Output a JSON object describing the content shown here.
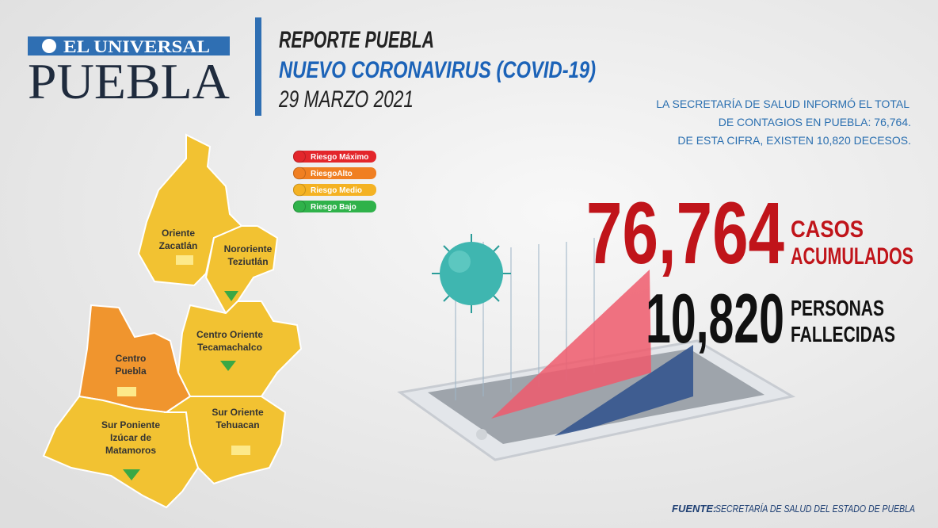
{
  "logo": {
    "top": "EL UNIVERSAL",
    "bottom": "PUEBLA"
  },
  "header": {
    "line1": "REPORTE PUEBLA",
    "line2": "NUEVO CORONAVIRUS (COVID-19)",
    "date": "29 MARZO 2021"
  },
  "summary": {
    "line1": "LA SECRETARÍA DE SALUD  INFORMÓ EL TOTAL",
    "line2": "DE CONTAGIOS EN PUEBLA: 76,764.",
    "line3": "DE ESTA CIFRA, EXISTEN 10,820 DECESOS."
  },
  "legend": [
    {
      "label": "Riesgo Máximo",
      "color": "#e3262b"
    },
    {
      "label": "RiesgoAlto",
      "color": "#f07f22"
    },
    {
      "label": "Riesgo Medio",
      "color": "#f4b223"
    },
    {
      "label": "Riesgo Bajo",
      "color": "#2fb24a"
    }
  ],
  "regions": [
    {
      "lines": [
        "Oriente",
        "Zacatlán"
      ]
    },
    {
      "lines": [
        "Nororiente",
        "Teziutlán"
      ]
    },
    {
      "lines": [
        "Centro Oriente",
        "Tecamachalco"
      ]
    },
    {
      "lines": [
        "Centro",
        "Puebla"
      ]
    },
    {
      "lines": [
        "Sur Poniente",
        "Izúcar de",
        "Matamoros"
      ]
    },
    {
      "lines": [
        "Sur Oriente",
        "Tehuacan"
      ]
    }
  ],
  "stats": [
    {
      "value": "76,764",
      "label": [
        "CASOS",
        "ACUMULADOS"
      ]
    },
    {
      "value": "10,820",
      "label": [
        "PERSONAS",
        "FALLECIDAS"
      ]
    }
  ],
  "source": {
    "label": "FUENTE:",
    "text": "SECRETARÍA DE SALUD DEL ESTADO DE PUEBLA"
  }
}
